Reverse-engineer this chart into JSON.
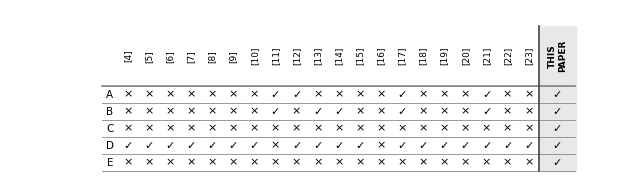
{
  "col_headers": [
    "[4]",
    "[5]",
    "[6]",
    "[7]",
    "[8]",
    "[9]",
    "[10]",
    "[11]",
    "[12]",
    "[13]",
    "[14]",
    "[15]",
    "[16]",
    "[17]",
    "[18]",
    "[19]",
    "[20]",
    "[21]",
    "[22]",
    "[23]",
    "THIS\nPAPER"
  ],
  "row_headers": [
    "A",
    "B",
    "C",
    "D",
    "E"
  ],
  "data": [
    [
      "x",
      "x",
      "x",
      "x",
      "x",
      "x",
      "x",
      "c",
      "c",
      "x",
      "x",
      "x",
      "x",
      "c",
      "x",
      "x",
      "x",
      "c",
      "x",
      "x",
      "c"
    ],
    [
      "x",
      "x",
      "x",
      "x",
      "x",
      "x",
      "x",
      "c",
      "x",
      "c",
      "c",
      "x",
      "x",
      "c",
      "x",
      "x",
      "x",
      "c",
      "x",
      "x",
      "c"
    ],
    [
      "x",
      "x",
      "x",
      "x",
      "x",
      "x",
      "x",
      "x",
      "x",
      "x",
      "x",
      "x",
      "x",
      "x",
      "x",
      "x",
      "x",
      "x",
      "x",
      "x",
      "c"
    ],
    [
      "c",
      "c",
      "c",
      "c",
      "c",
      "c",
      "c",
      "x",
      "c",
      "c",
      "c",
      "c",
      "x",
      "c",
      "c",
      "c",
      "c",
      "c",
      "c",
      "c",
      "c"
    ],
    [
      "x",
      "x",
      "x",
      "x",
      "x",
      "x",
      "x",
      "x",
      "x",
      "x",
      "x",
      "x",
      "x",
      "x",
      "x",
      "x",
      "x",
      "x",
      "x",
      "x",
      "c"
    ]
  ],
  "check_char": "✓",
  "cross_char": "×",
  "bg_color": "#ffffff",
  "line_color": "#888888",
  "text_color": "#000000",
  "this_paper_col_bg": "#e8e8e8"
}
